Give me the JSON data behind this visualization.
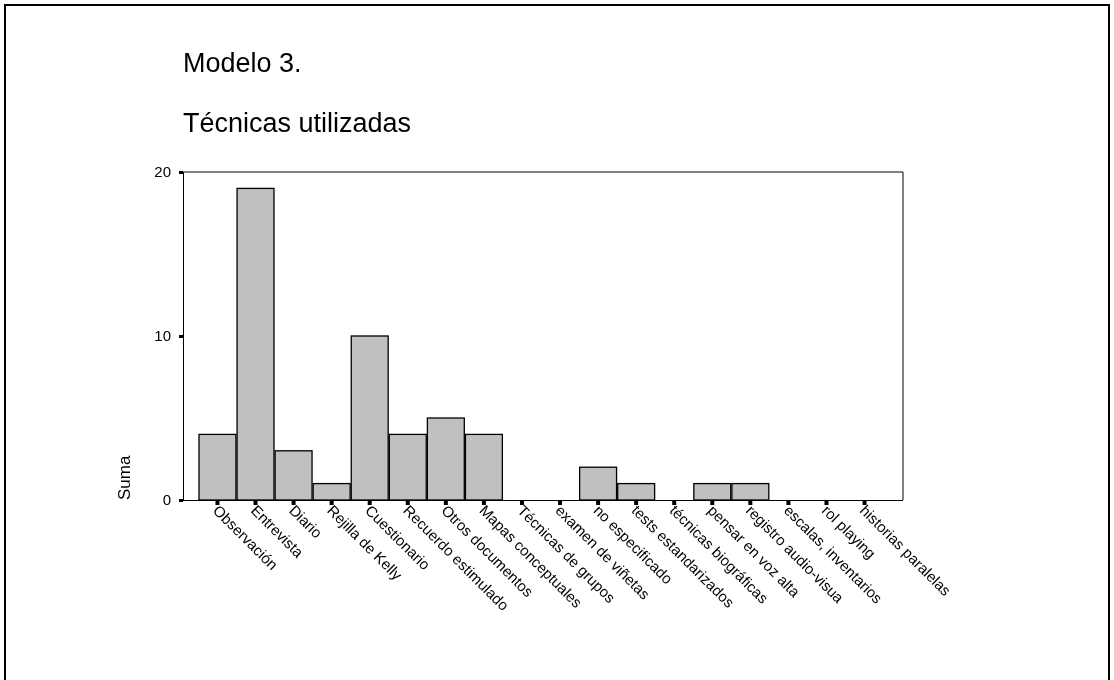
{
  "chart_data": {
    "type": "bar",
    "title": "Modelo 3.",
    "subtitle": "Técnicas utilizadas",
    "ylabel": "Suma",
    "categories": [
      "Observación",
      "Entrevista",
      "Diario",
      "Rejilla de Kelly",
      "Cuestionario",
      "Recuerdo estimulado",
      "Otros documentos",
      "Mapas conceptuales",
      "Técnicas de grupos",
      "examen de viñetas",
      "no especificado",
      "tests estandarizados",
      "técnicas biográficas",
      "pensar en voz alta",
      "registro audio-visua",
      "escalas, inventarios",
      "rol playing",
      "historias paralelas"
    ],
    "values": [
      4,
      19,
      3,
      1,
      10,
      4,
      5,
      4,
      0,
      0,
      2,
      1,
      0,
      1,
      1,
      0,
      0,
      0
    ],
    "color": "#c0c0c0",
    "ylim": [
      0,
      20
    ],
    "yticks": [
      0,
      10,
      20
    ],
    "grid": false
  }
}
